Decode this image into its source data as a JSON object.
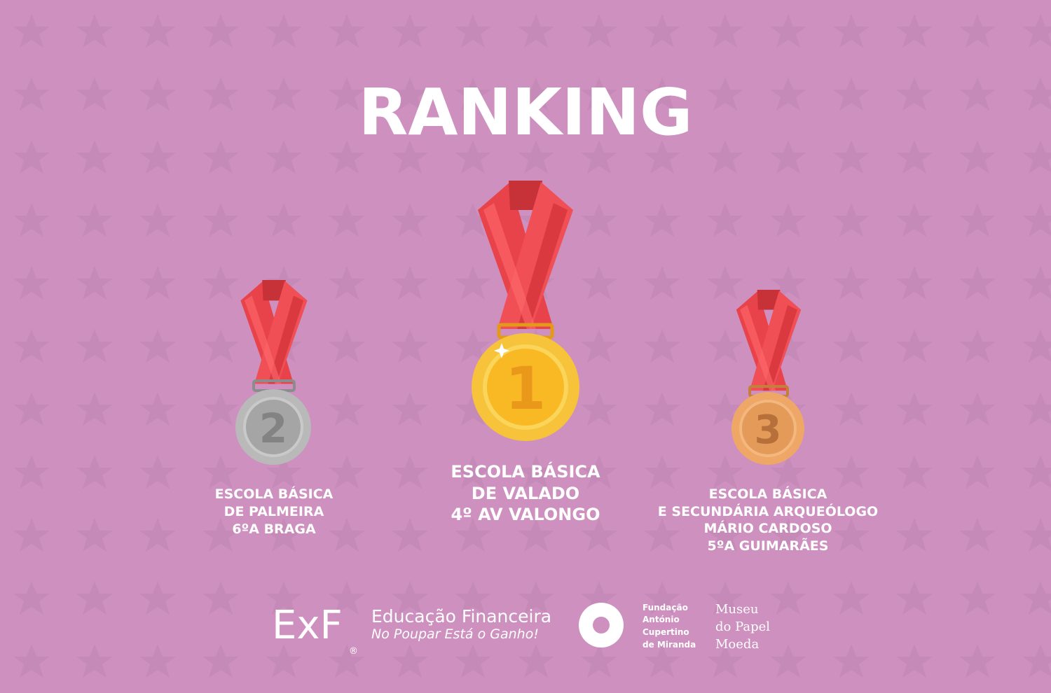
{
  "header": {
    "title": "RANKING"
  },
  "medals": [
    {
      "place": "2",
      "lines": [
        "ESCOLA BÁSICA",
        "DE PALMEIRA",
        "6ºA BRAGA"
      ]
    },
    {
      "place": "1",
      "lines": [
        "ESCOLA BÁSICA",
        "DE VALADO",
        "4º AV VALONGO"
      ]
    },
    {
      "place": "3",
      "lines": [
        "ESCOLA BÁSICA",
        "E SECUNDÁRIA ARQUEÓLOGO",
        "MÁRIO CARDOSO",
        "5ºA GUIMARÃES"
      ]
    }
  ],
  "footer": {
    "exf": {
      "logo": "ExF",
      "registered": "®",
      "name": "Educação Financeira",
      "slogan": "No Poupar Está o Ganho!"
    },
    "fundacao": {
      "lines": [
        "Fundação",
        "António",
        "Cupertino",
        "de Miranda"
      ]
    },
    "museu": {
      "lines": [
        "Museu",
        "do Papel",
        "Moeda"
      ]
    }
  }
}
